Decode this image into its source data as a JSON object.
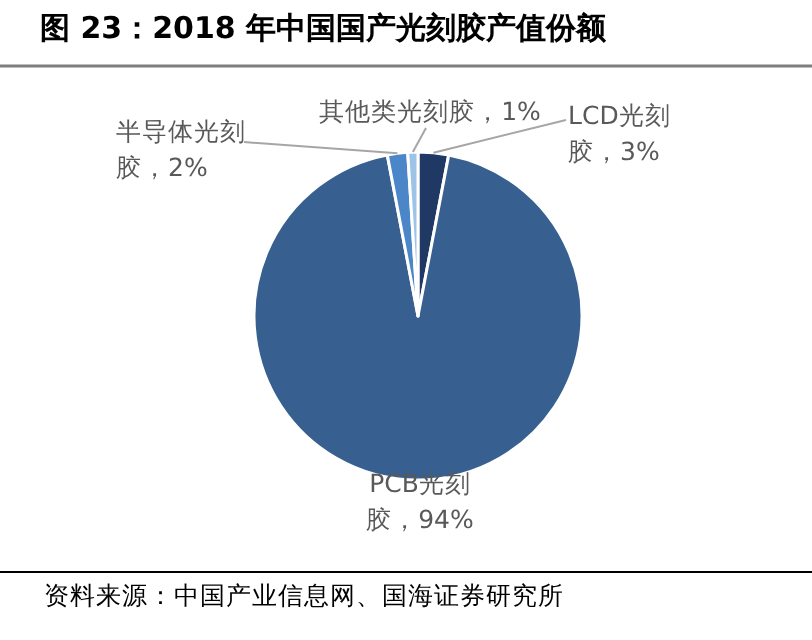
{
  "chart_data": {
    "type": "pie",
    "title": "图 23：2018 年中国国产光刻胶产值份额",
    "categories": [
      "LCD光刻胶，3%",
      "PCB光刻胶，94%",
      "半导体光刻胶，2%",
      "其他类光刻胶，1%"
    ],
    "values": [
      3,
      94,
      2,
      1
    ],
    "colors": [
      "#1f3864",
      "#375f8f",
      "#4a86c8",
      "#9dc3e6"
    ],
    "annotations": [
      "资料来源：中国产业信息网、国海证券研究所"
    ]
  }
}
